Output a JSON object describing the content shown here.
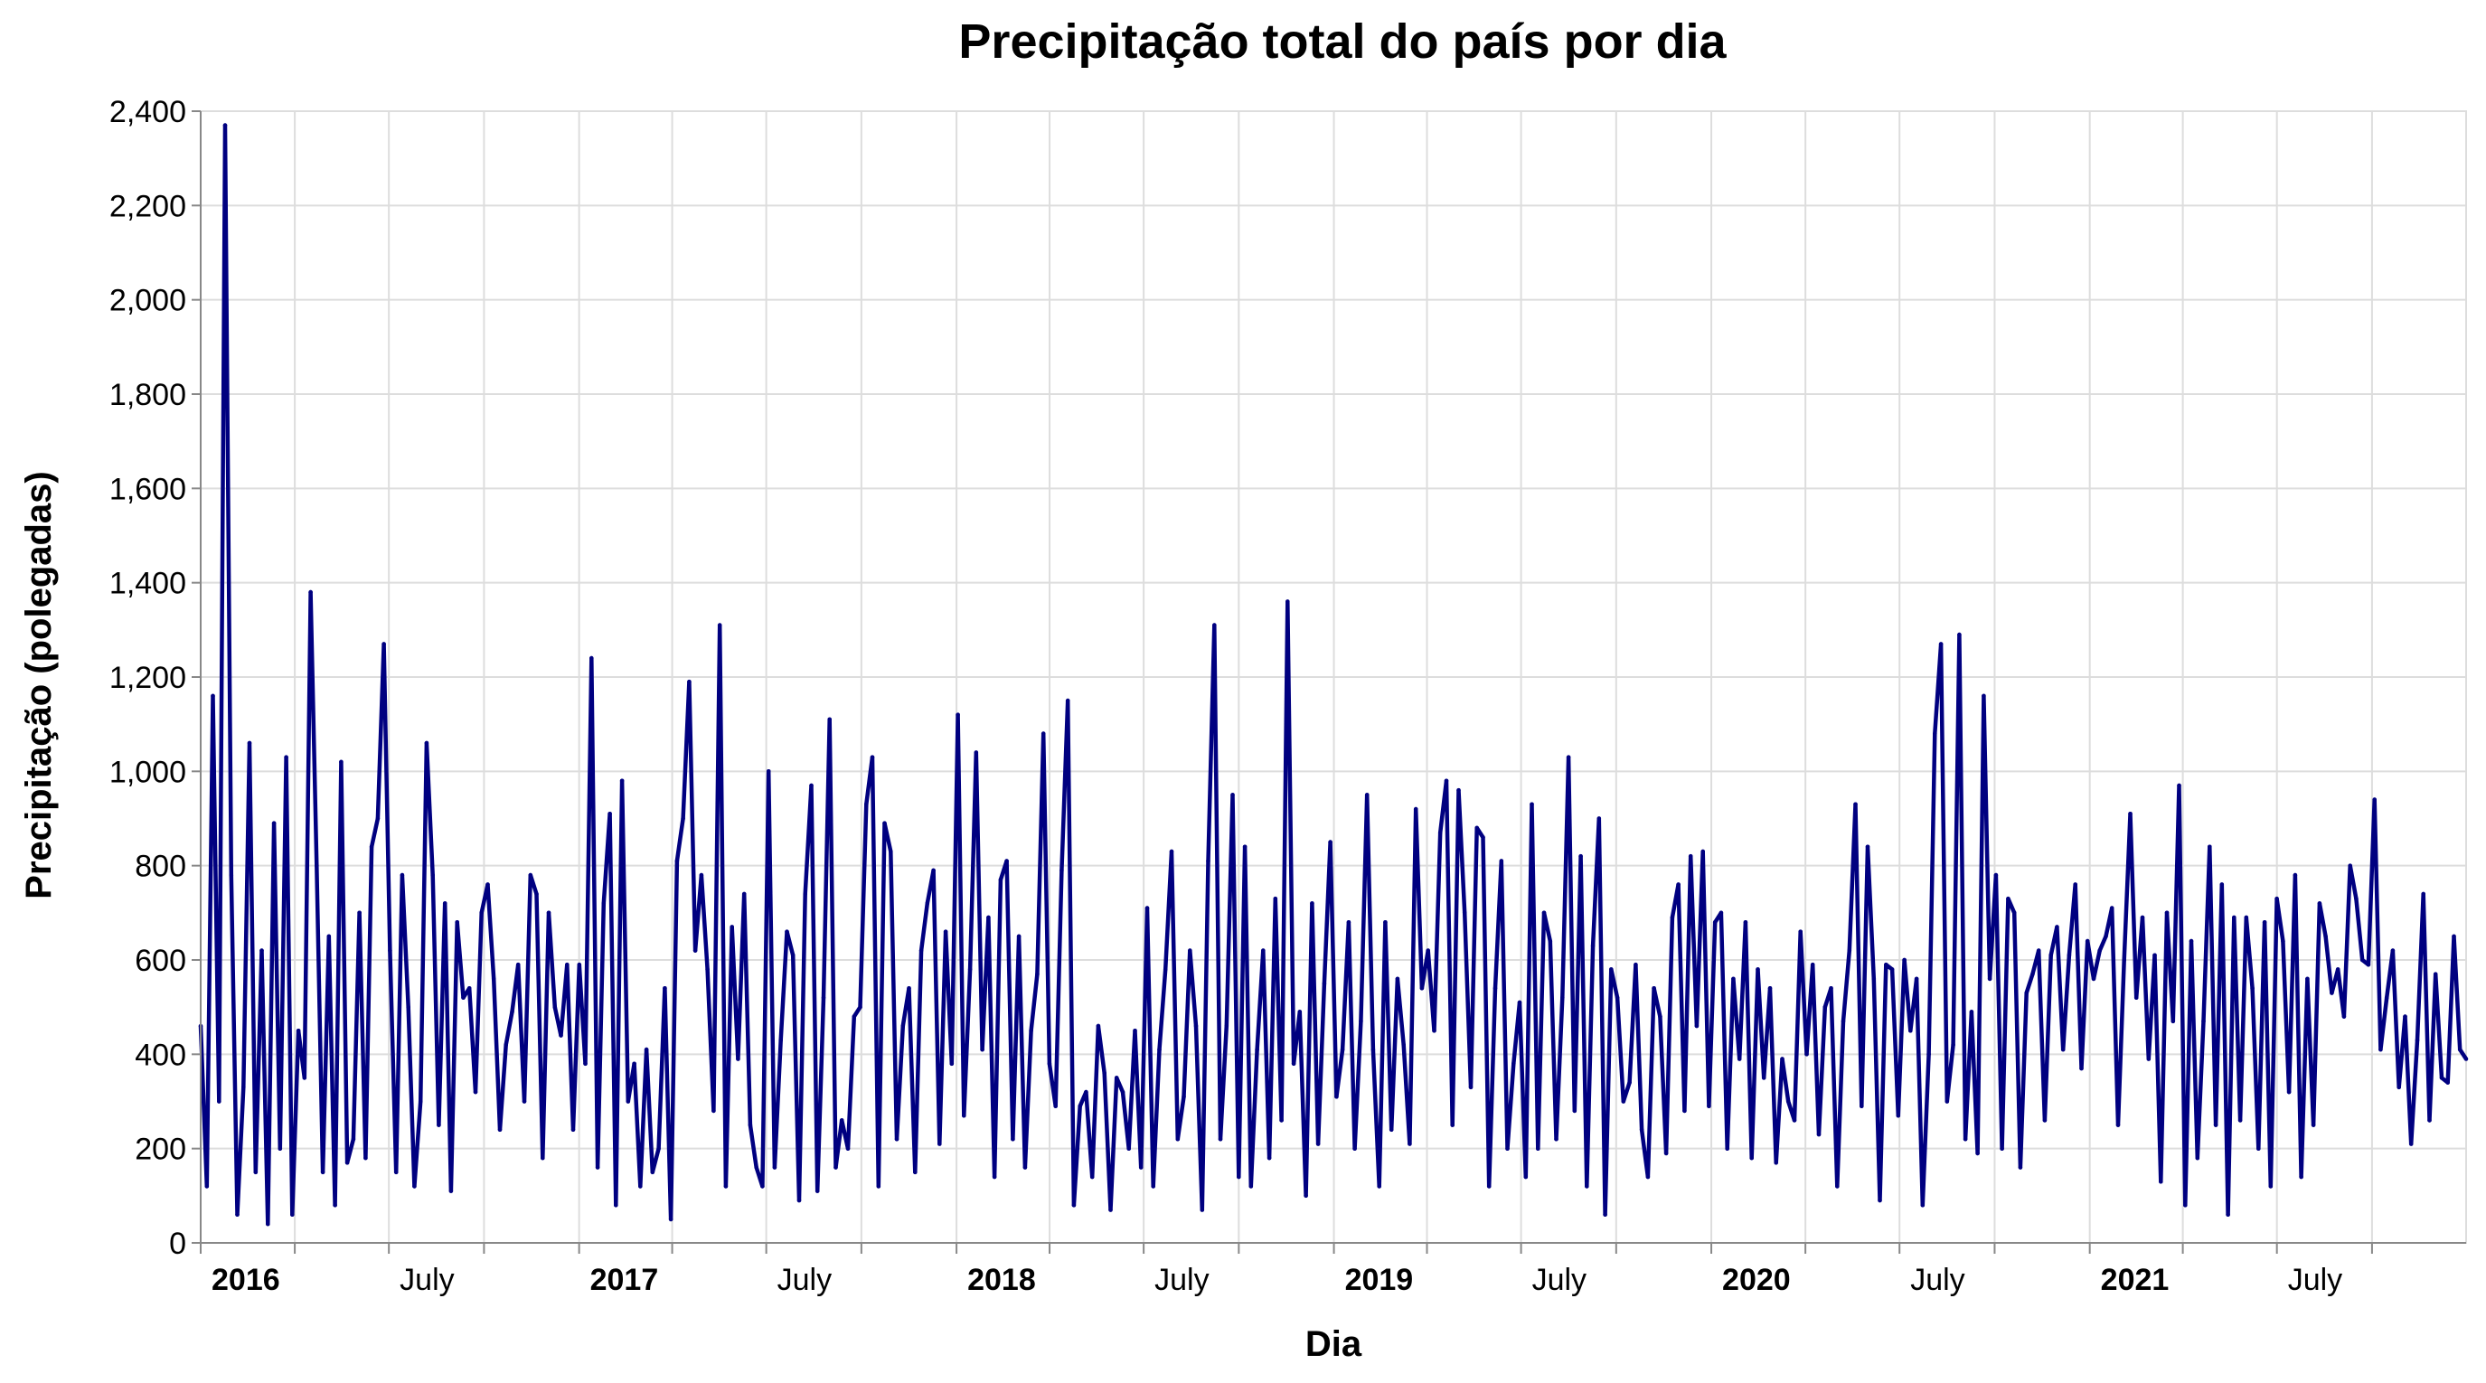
{
  "chart_data": {
    "type": "line",
    "title": "Precipitação total do país por dia",
    "xlabel": "Dia",
    "ylabel": "Precipitação (polegadas)",
    "ylim": [
      0,
      2400
    ],
    "yticks": [
      "0",
      "200",
      "400",
      "600",
      "800",
      "1,000",
      "1,200",
      "1,400",
      "1,600",
      "1,800",
      "2,000",
      "2,200",
      "2,400"
    ],
    "xrange": [
      "2016-01-01",
      "2021-12-31"
    ],
    "xticks": [
      {
        "date": "2016-01-01",
        "label": "2016",
        "bold": true
      },
      {
        "date": "2016-04-01",
        "label": "",
        "bold": false
      },
      {
        "date": "2016-07-01",
        "label": "July",
        "bold": false
      },
      {
        "date": "2016-10-01",
        "label": "",
        "bold": false
      },
      {
        "date": "2017-01-01",
        "label": "2017",
        "bold": true
      },
      {
        "date": "2017-04-01",
        "label": "",
        "bold": false
      },
      {
        "date": "2017-07-01",
        "label": "July",
        "bold": false
      },
      {
        "date": "2017-10-01",
        "label": "",
        "bold": false
      },
      {
        "date": "2018-01-01",
        "label": "2018",
        "bold": true
      },
      {
        "date": "2018-04-01",
        "label": "",
        "bold": false
      },
      {
        "date": "2018-07-01",
        "label": "July",
        "bold": false
      },
      {
        "date": "2018-10-01",
        "label": "",
        "bold": false
      },
      {
        "date": "2019-01-01",
        "label": "2019",
        "bold": true
      },
      {
        "date": "2019-04-01",
        "label": "",
        "bold": false
      },
      {
        "date": "2019-07-01",
        "label": "July",
        "bold": false
      },
      {
        "date": "2019-10-01",
        "label": "",
        "bold": false
      },
      {
        "date": "2020-01-01",
        "label": "2020",
        "bold": true
      },
      {
        "date": "2020-04-01",
        "label": "",
        "bold": false
      },
      {
        "date": "2020-07-01",
        "label": "July",
        "bold": false
      },
      {
        "date": "2020-10-01",
        "label": "",
        "bold": false
      },
      {
        "date": "2021-01-01",
        "label": "2021",
        "bold": true
      },
      {
        "date": "2021-04-01",
        "label": "",
        "bold": false
      },
      {
        "date": "2021-07-01",
        "label": "July",
        "bold": false
      },
      {
        "date": "2021-10-01",
        "label": "",
        "bold": false
      }
    ],
    "grid": true,
    "legend": "none",
    "series": [
      {
        "color": "#000080",
        "x_start": "2016-01-01",
        "x_step": "1 week",
        "values": [
          460,
          120,
          1160,
          300,
          2370,
          780,
          60,
          330,
          1060,
          150,
          620,
          40,
          890,
          200,
          1030,
          60,
          450,
          350,
          1380,
          800,
          150,
          650,
          80,
          1020,
          170,
          220,
          700,
          180,
          840,
          900,
          1270,
          620,
          150,
          780,
          500,
          120,
          300,
          1060,
          780,
          250,
          720,
          110,
          680,
          520,
          540,
          320,
          700,
          760,
          560,
          240,
          420,
          490,
          590,
          300,
          780,
          740,
          180,
          700,
          500,
          440,
          590,
          240,
          590,
          380,
          1240,
          160,
          720,
          910,
          80,
          980,
          300,
          380,
          120,
          410,
          150,
          200,
          540,
          50,
          810,
          900,
          1190,
          620,
          780,
          580,
          280,
          1310,
          120,
          670,
          390,
          740,
          250,
          160,
          120,
          1000,
          160,
          430,
          660,
          610,
          90,
          740,
          970,
          110,
          520,
          1110,
          160,
          260,
          200,
          480,
          500,
          930,
          1030,
          120,
          890,
          830,
          220,
          460,
          540,
          150,
          620,
          720,
          790,
          210,
          660,
          380,
          1120,
          270,
          580,
          1040,
          410,
          690,
          140,
          770,
          810,
          220,
          650,
          160,
          450,
          570,
          1080,
          380,
          290,
          790,
          1150,
          80,
          290,
          320,
          140,
          460,
          360,
          70,
          350,
          320,
          200,
          450,
          160,
          710,
          120,
          410,
          580,
          830,
          220,
          310,
          620,
          460,
          70,
          810,
          1310,
          220,
          460,
          950,
          140,
          840,
          120,
          410,
          620,
          180,
          730,
          260,
          1360,
          380,
          490,
          100,
          720,
          210,
          550,
          850,
          310,
          410,
          680,
          200,
          470,
          950,
          410,
          120,
          680,
          240,
          560,
          420,
          210,
          920,
          540,
          620,
          450,
          870,
          980,
          250,
          960,
          700,
          330,
          880,
          860,
          120,
          540,
          810,
          200,
          380,
          510,
          140,
          930,
          200,
          700,
          640,
          220,
          520,
          1030,
          280,
          820,
          120,
          630,
          900,
          60,
          580,
          520,
          300,
          340,
          590,
          240,
          140,
          540,
          480,
          190,
          690,
          760,
          280,
          820,
          460,
          830,
          290,
          680,
          700,
          200,
          560,
          390,
          680,
          180,
          580,
          350,
          540,
          170,
          390,
          300,
          260,
          660,
          400,
          590,
          230,
          500,
          540,
          120,
          470,
          620,
          930,
          290,
          840,
          560,
          90,
          590,
          580,
          270,
          600,
          450,
          560,
          80,
          400,
          1080,
          1270,
          300,
          420,
          1290,
          220,
          490,
          190,
          1160,
          560,
          780,
          200,
          730,
          700,
          160,
          530,
          570,
          620,
          260,
          610,
          670,
          410,
          610,
          760,
          370,
          640,
          560,
          620,
          650,
          710,
          250,
          600,
          910,
          520,
          690,
          390,
          610,
          130,
          700,
          470,
          970,
          80,
          640,
          180,
          470,
          840,
          250,
          760,
          60,
          690,
          260,
          690,
          540,
          200,
          680,
          120,
          730,
          640,
          320,
          780,
          140,
          560,
          250,
          720,
          650,
          530,
          580,
          480,
          800,
          730,
          600,
          590,
          940,
          410,
          520,
          620,
          330,
          480,
          210,
          430,
          740,
          260,
          570,
          350,
          340,
          650,
          410,
          390
        ]
      }
    ]
  }
}
